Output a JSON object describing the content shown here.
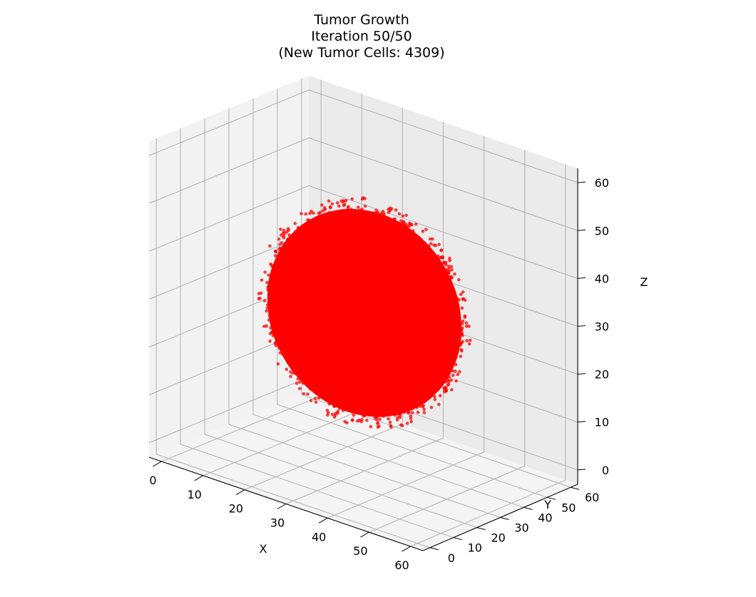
{
  "chart_data": {
    "type": "scatter",
    "projection": "3d",
    "title_lines": [
      "Tumor Growth",
      "Iteration 50/50",
      "(New Tumor Cells: 4309)"
    ],
    "xlabel": "X",
    "ylabel": "Y",
    "zlabel": "Z",
    "xlim": [
      -3,
      63
    ],
    "ylim": [
      -3,
      63
    ],
    "zlim": [
      -3,
      63
    ],
    "x_ticks": [
      0,
      10,
      20,
      30,
      40,
      50,
      60
    ],
    "y_ticks": [
      0,
      10,
      20,
      30,
      40,
      50,
      60
    ],
    "z_ticks": [
      0,
      10,
      20,
      30,
      40,
      50,
      60
    ],
    "grid": true,
    "series": [
      {
        "marker_color": "#ff0000",
        "shape": "approximately spherical cluster of cells",
        "center": [
          30,
          30,
          30
        ],
        "radius": 22
      }
    ]
  }
}
